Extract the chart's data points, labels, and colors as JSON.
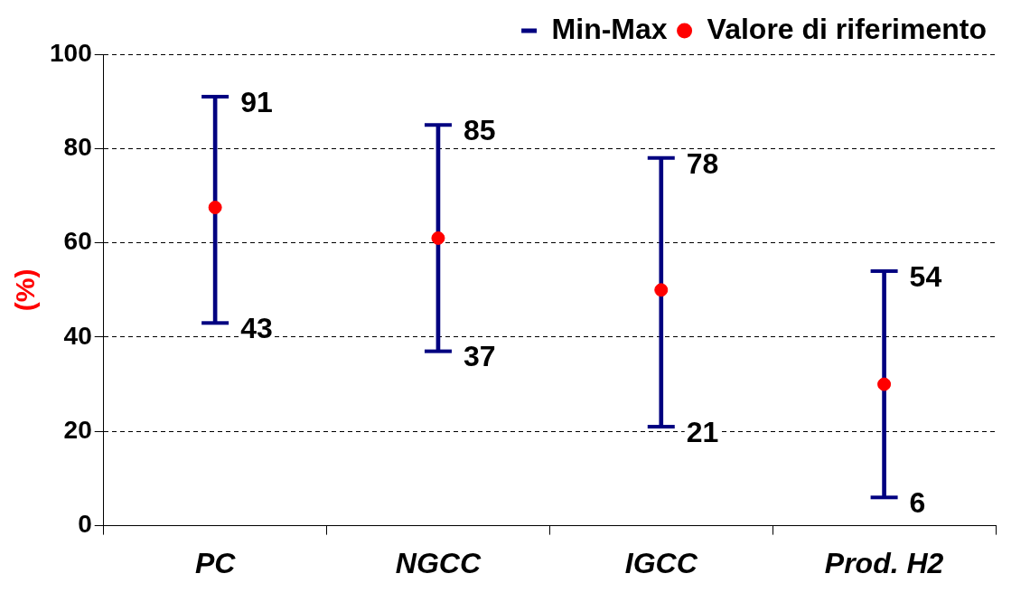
{
  "chart_data": {
    "type": "bar",
    "ylabel": "(%)",
    "categories": [
      "PC",
      "NGCC",
      "IGCC",
      "Prod. H2"
    ],
    "series": [
      {
        "name": "Min-Max",
        "color": "#000080",
        "base": [
          43,
          37,
          21,
          6
        ],
        "values": [
          48,
          48,
          57,
          48
        ]
      },
      {
        "name": "Valore di riferimento",
        "type": "scatter",
        "color": "#ff0000",
        "values": [
          67.5,
          61,
          50,
          30
        ]
      }
    ],
    "annotations": [
      {
        "text": "91",
        "x": "PC",
        "y": 91
      },
      {
        "text": "43",
        "x": "PC",
        "y": 43
      },
      {
        "text": "85",
        "x": "NGCC",
        "y": 85
      },
      {
        "text": "37",
        "x": "NGCC",
        "y": 37
      },
      {
        "text": "78",
        "x": "IGCC",
        "y": 78
      },
      {
        "text": "21",
        "x": "IGCC",
        "y": 21
      },
      {
        "text": "54",
        "x": "Prod. H2",
        "y": 54
      },
      {
        "text": "6",
        "x": "Prod. H2",
        "y": 6
      }
    ],
    "ylim": [
      0,
      100
    ],
    "yticks": [
      0,
      20,
      40,
      60,
      80,
      100
    ],
    "grid": "y",
    "legend": "top right",
    "marker": "circle"
  }
}
